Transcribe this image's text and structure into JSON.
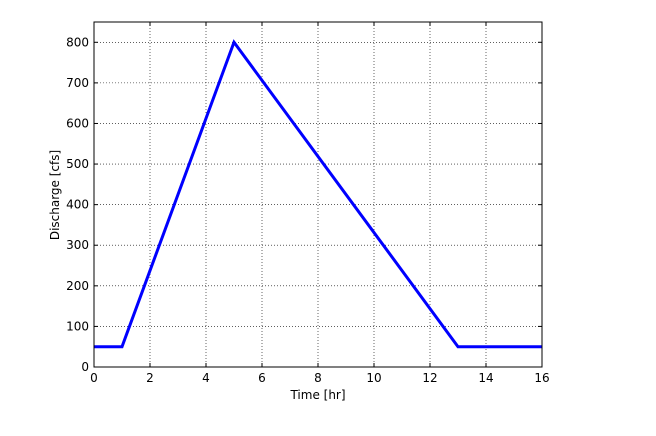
{
  "chart_data": {
    "type": "line",
    "title": "",
    "xlabel": "Time [hr]",
    "ylabel": "Discharge [cfs]",
    "xlim": [
      0,
      16
    ],
    "ylim": [
      0,
      850
    ],
    "xticks": [
      0,
      2,
      4,
      6,
      8,
      10,
      12,
      14,
      16
    ],
    "yticks": [
      0,
      100,
      200,
      300,
      400,
      500,
      600,
      700,
      800
    ],
    "grid": true,
    "grid_style": "dotted",
    "series": [
      {
        "color": "#0000ff",
        "x": [
          0,
          1,
          5,
          13,
          16
        ],
        "y": [
          50,
          50,
          800,
          50,
          50
        ]
      }
    ]
  },
  "colors": {
    "line": "#0000ff",
    "axes": "#000000",
    "grid": "#000000",
    "background": "#ffffff"
  }
}
